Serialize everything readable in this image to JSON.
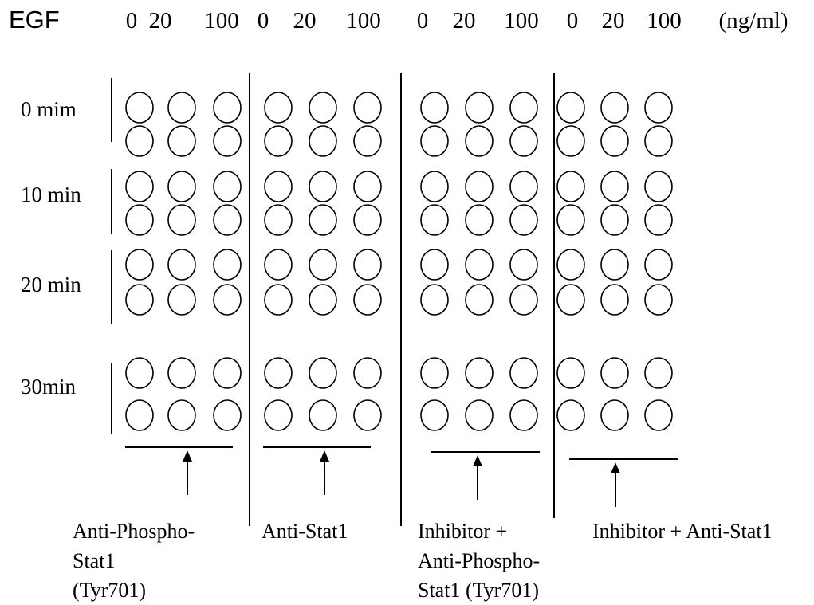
{
  "header": {
    "label": "EGF",
    "unit": "(ng/ml)",
    "dose_groups": [
      [
        "0",
        "20",
        "100"
      ],
      [
        "0",
        "20",
        "100"
      ],
      [
        "0",
        "20",
        "100"
      ],
      [
        "0",
        "20",
        "100"
      ]
    ]
  },
  "rows": [
    {
      "label": "0 mim"
    },
    {
      "label": "10 min"
    },
    {
      "label": "20 min"
    },
    {
      "label": "30min"
    }
  ],
  "panels": [
    {
      "caption": [
        "Anti-Phospho-",
        "Stat1",
        "(Tyr701)"
      ]
    },
    {
      "caption": [
        "Anti-Stat1"
      ]
    },
    {
      "caption": [
        "Inhibitor +",
        "Anti-Phospho-",
        " Stat1 (Tyr701)"
      ]
    },
    {
      "caption": [
        "Inhibitor + Anti-Stat1"
      ]
    }
  ],
  "colors": {
    "ink": "#000000",
    "background": "#ffffff"
  }
}
